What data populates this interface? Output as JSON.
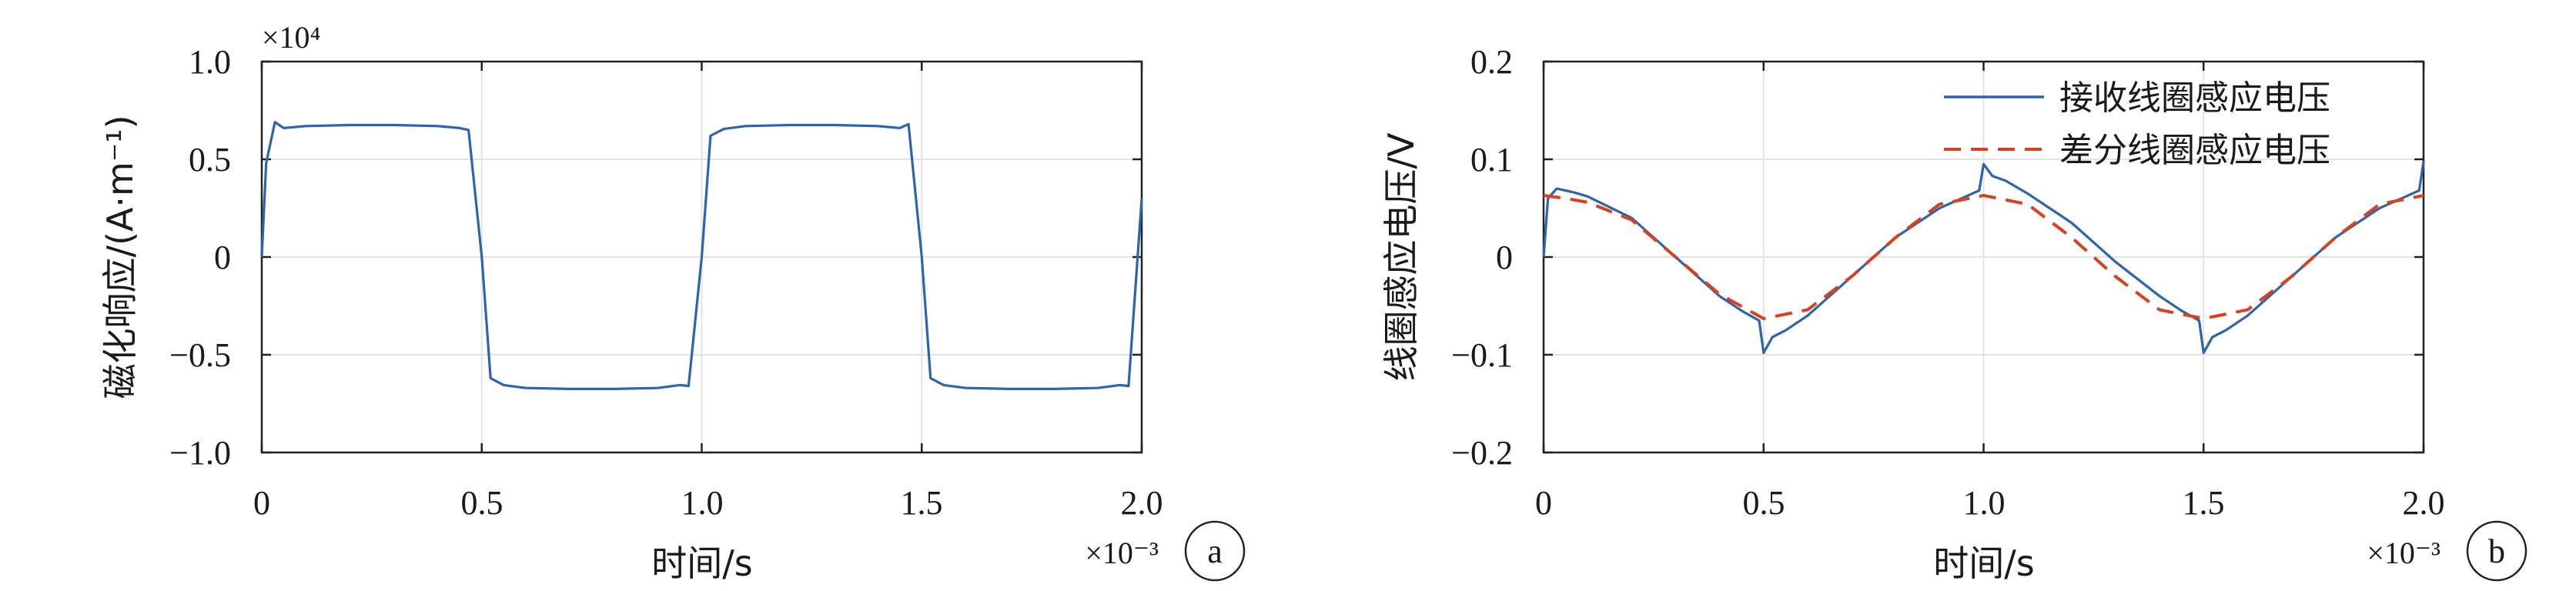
{
  "chart_data": [
    {
      "type": "line",
      "panel_label": "a",
      "xlabel": "时间/s",
      "ylabel": "磁化响应/(A·m⁻¹)",
      "x_multiplier": "×10⁻³",
      "y_multiplier": "×10⁴",
      "xlim": [
        0,
        2.0
      ],
      "ylim": [
        -1.0,
        1.0
      ],
      "xticks": [
        "0",
        "0.5",
        "1.0",
        "1.5",
        "2.0"
      ],
      "yticks": [
        "1.0",
        "0.5",
        "0",
        "−0.5",
        "−1.0"
      ],
      "grid": true,
      "series": [
        {
          "color": "#2e63b0",
          "style": "solid",
          "x": [
            0,
            0.01,
            0.03,
            0.05,
            0.1,
            0.2,
            0.3,
            0.4,
            0.45,
            0.47,
            0.5,
            0.52,
            0.55,
            0.6,
            0.7,
            0.8,
            0.9,
            0.95,
            0.97,
            1.0,
            1.02,
            1.05,
            1.1,
            1.2,
            1.3,
            1.4,
            1.45,
            1.47,
            1.5,
            1.52,
            1.55,
            1.6,
            1.7,
            1.8,
            1.9,
            1.95,
            1.97,
            2.0
          ],
          "y": [
            0,
            0.48,
            0.69,
            0.66,
            0.67,
            0.675,
            0.675,
            0.67,
            0.66,
            0.65,
            0,
            -0.62,
            -0.655,
            -0.67,
            -0.675,
            -0.675,
            -0.67,
            -0.655,
            -0.66,
            0,
            0.62,
            0.655,
            0.67,
            0.675,
            0.675,
            0.67,
            0.66,
            0.68,
            0,
            -0.62,
            -0.655,
            -0.67,
            -0.675,
            -0.675,
            -0.67,
            -0.655,
            -0.66,
            0.3
          ]
        }
      ]
    },
    {
      "type": "line",
      "panel_label": "b",
      "xlabel": "时间/s",
      "ylabel": "线圈感应电压/V",
      "x_multiplier": "×10⁻³",
      "xlim": [
        0,
        2.0
      ],
      "ylim": [
        -0.2,
        0.2
      ],
      "xticks": [
        "0",
        "0.5",
        "1.0",
        "1.5",
        "2.0"
      ],
      "yticks": [
        "0.2",
        "0.1",
        "0",
        "−0.1",
        "−0.2"
      ],
      "grid": true,
      "legend": "top-right",
      "series": [
        {
          "name": "接收线圈感应电压",
          "color": "#2e63b0",
          "style": "solid",
          "x": [
            0,
            0.01,
            0.03,
            0.05,
            0.07,
            0.1,
            0.2,
            0.3,
            0.4,
            0.45,
            0.49,
            0.5,
            0.52,
            0.55,
            0.6,
            0.7,
            0.8,
            0.9,
            0.95,
            0.99,
            1.0,
            1.02,
            1.05,
            1.1,
            1.2,
            1.3,
            1.4,
            1.45,
            1.49,
            1.5,
            1.52,
            1.55,
            1.6,
            1.7,
            1.8,
            1.9,
            1.95,
            1.99,
            2.0
          ],
          "y": [
            0.0,
            0.06,
            0.07,
            0.068,
            0.066,
            0.062,
            0.04,
            0.0,
            -0.04,
            -0.055,
            -0.065,
            -0.098,
            -0.082,
            -0.075,
            -0.06,
            -0.02,
            0.02,
            0.05,
            0.06,
            0.068,
            0.095,
            0.083,
            0.078,
            0.065,
            0.035,
            -0.005,
            -0.04,
            -0.055,
            -0.065,
            -0.098,
            -0.082,
            -0.075,
            -0.06,
            -0.02,
            0.02,
            0.05,
            0.06,
            0.068,
            0.098
          ]
        },
        {
          "name": "差分线圈感应电压",
          "color": "#d9411e",
          "style": "dashed",
          "x": [
            0,
            0.05,
            0.1,
            0.2,
            0.3,
            0.4,
            0.5,
            0.6,
            0.7,
            0.8,
            0.9,
            1.0,
            1.1,
            1.2,
            1.3,
            1.4,
            1.5,
            1.6,
            1.7,
            1.8,
            1.9,
            2.0
          ],
          "y": [
            0.063,
            0.06,
            0.056,
            0.038,
            0.0,
            -0.038,
            -0.063,
            -0.054,
            -0.02,
            0.02,
            0.054,
            0.063,
            0.054,
            0.02,
            -0.02,
            -0.054,
            -0.063,
            -0.054,
            -0.02,
            0.02,
            0.054,
            0.063
          ]
        }
      ]
    }
  ]
}
